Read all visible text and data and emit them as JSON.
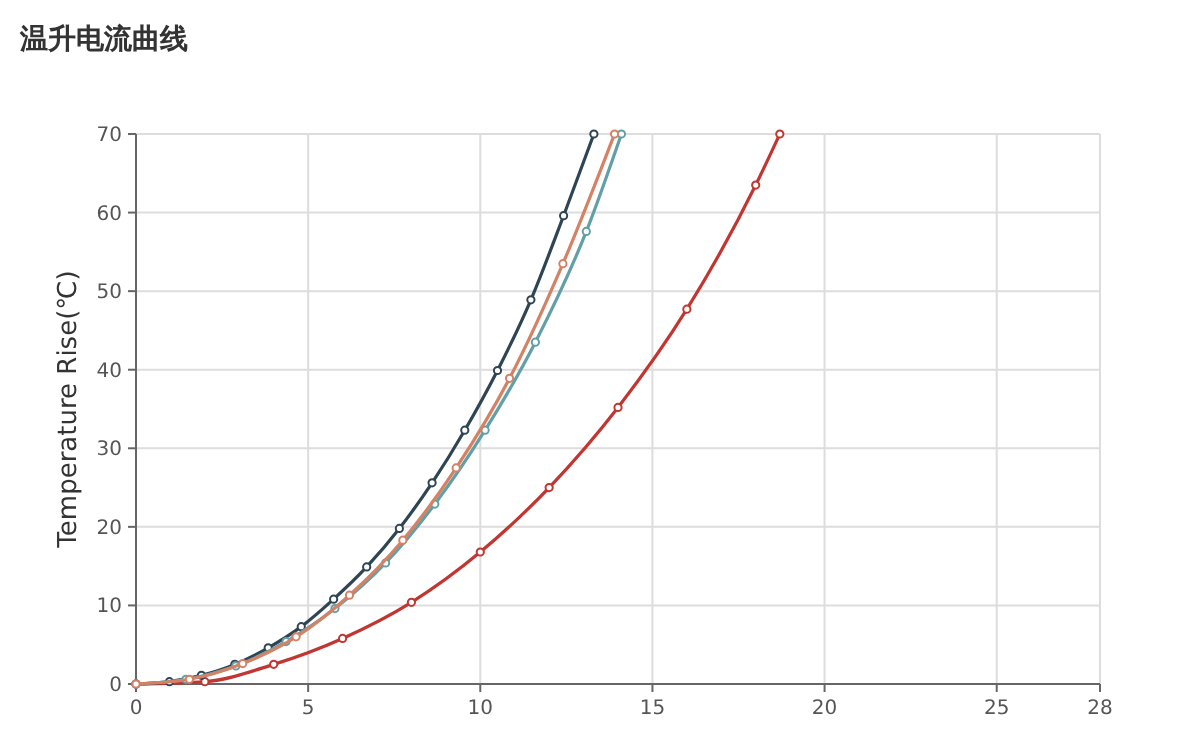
{
  "chart_data": {
    "type": "line",
    "title": "温升电流曲线",
    "ylabel": "Temperature Rise(℃)",
    "xlim": [
      0,
      28
    ],
    "xticks": [
      0,
      5,
      10,
      15,
      20,
      25,
      28
    ],
    "ylim": [
      0,
      70
    ],
    "yticks": [
      0,
      10,
      20,
      30,
      40,
      50,
      60,
      70
    ],
    "grid": true,
    "marker": "circle",
    "line_style": "solid",
    "series": [
      {
        "color": "#c23531",
        "x": [
          0,
          2,
          4,
          6,
          8,
          10,
          12,
          14,
          16,
          18,
          18.7
        ],
        "values": [
          0,
          0.3,
          2.5,
          5.8,
          10.4,
          16.8,
          25,
          35.2,
          47.7,
          63.5,
          70
        ]
      },
      {
        "color": "#2f4554",
        "x": [
          0,
          0.97,
          1.9,
          2.87,
          3.84,
          4.8,
          5.74,
          6.7,
          7.65,
          8.6,
          9.55,
          10.5,
          11.47,
          12.42,
          13.3
        ],
        "values": [
          0,
          0.3,
          1.1,
          2.5,
          4.6,
          7.3,
          10.8,
          14.9,
          19.8,
          25.6,
          32.3,
          39.9,
          48.9,
          59.6,
          70
        ]
      },
      {
        "color": "#61a0a8",
        "x": [
          0,
          1.45,
          2.9,
          4.36,
          5.78,
          7.25,
          8.68,
          10.14,
          11.6,
          13.08,
          14.1
        ],
        "values": [
          0,
          0.6,
          2.3,
          5.4,
          9.6,
          15.4,
          22.9,
          32.3,
          43.5,
          57.6,
          70
        ]
      },
      {
        "color": "#d48265",
        "x": [
          0,
          1.55,
          3.1,
          4.65,
          6.2,
          7.75,
          9.3,
          10.85,
          12.4,
          13.9
        ],
        "values": [
          0,
          0.6,
          2.6,
          6,
          11.3,
          18.3,
          27.5,
          38.9,
          53.5,
          70
        ]
      }
    ]
  }
}
